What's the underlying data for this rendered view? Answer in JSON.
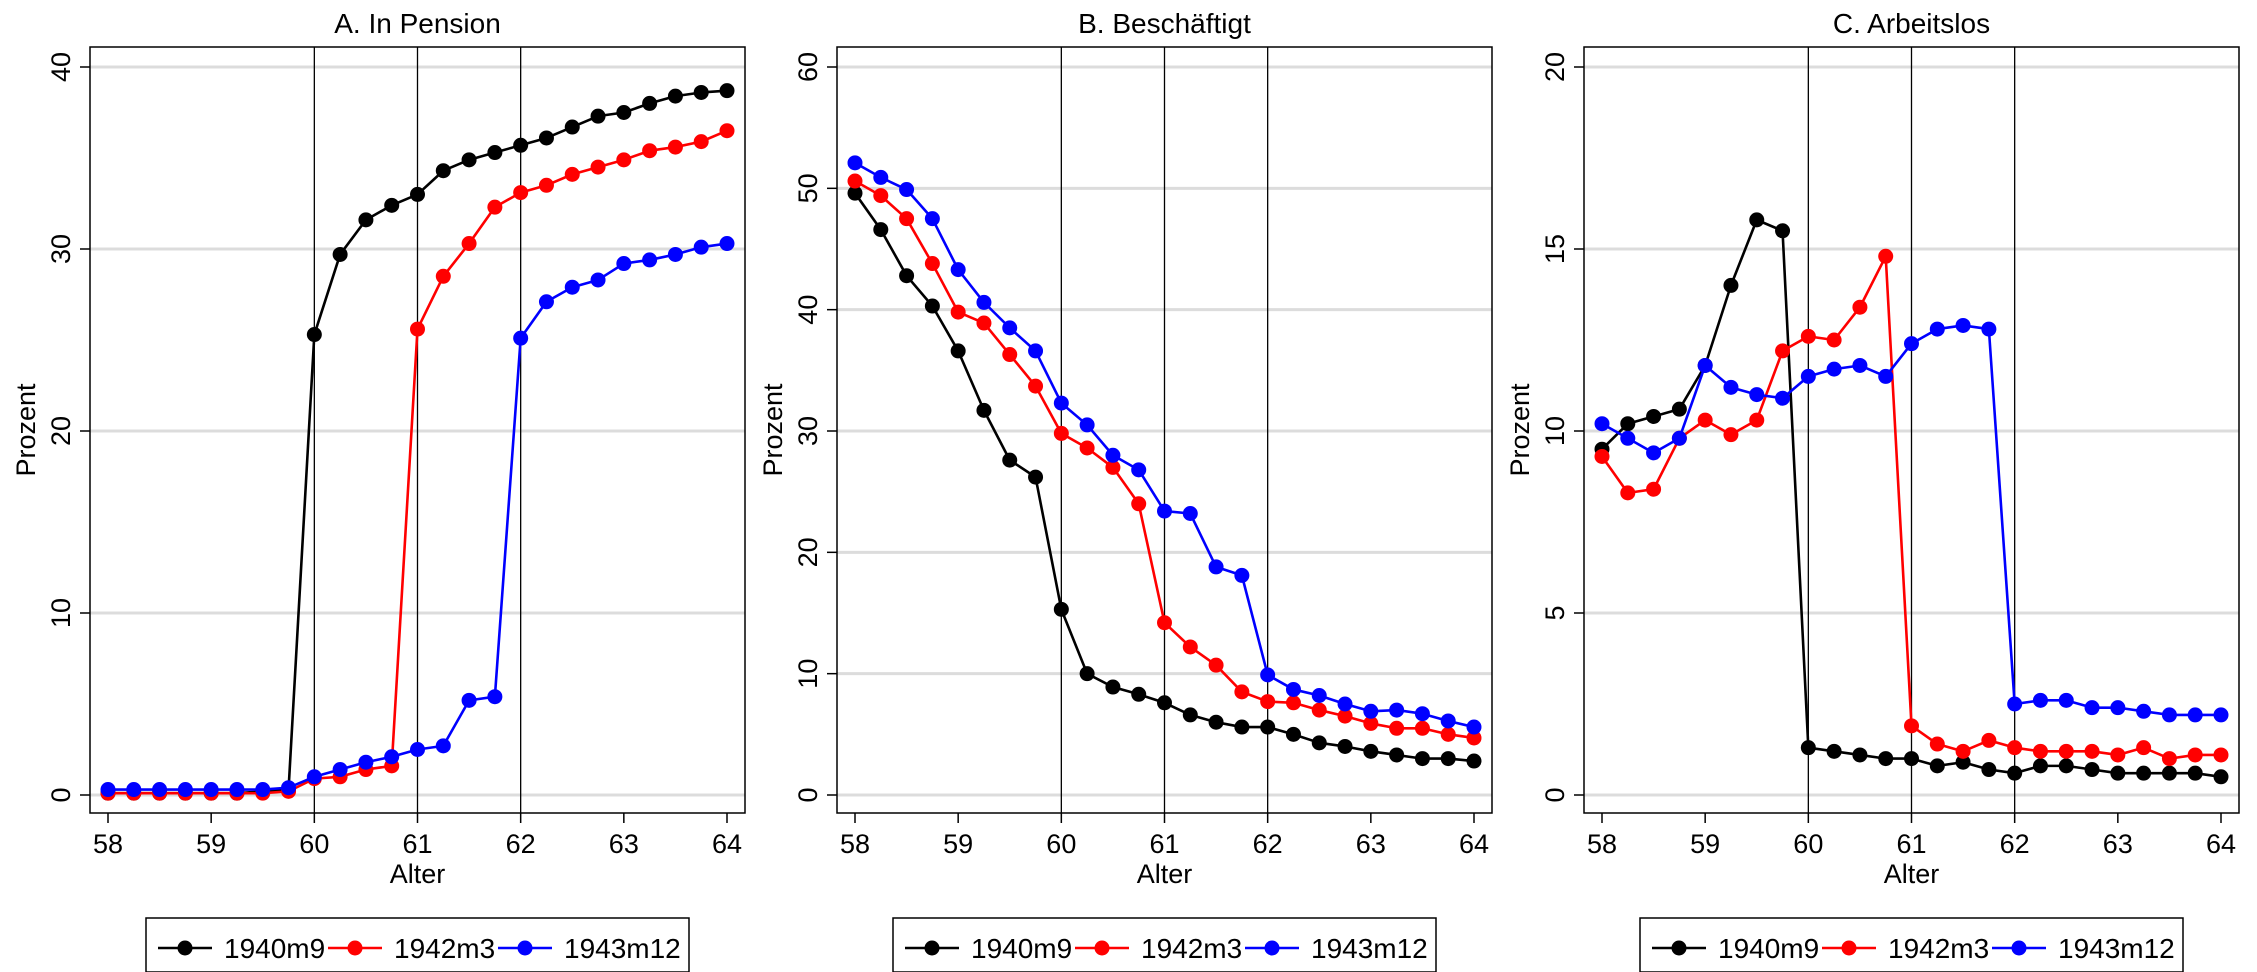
{
  "chart_data": [
    {
      "type": "line",
      "title": "A. In Pension",
      "xlabel": "Alter",
      "ylabel": "Prozent",
      "xlim": [
        58,
        64
      ],
      "ylim": [
        0,
        40
      ],
      "xticks": [
        58,
        59,
        60,
        61,
        62,
        63,
        64
      ],
      "yticks": [
        0,
        10,
        20,
        30,
        40
      ],
      "vlines": [
        60,
        61,
        62
      ],
      "grid": true,
      "legend_position": "bottom",
      "x": [
        58,
        58.25,
        58.5,
        58.75,
        59,
        59.25,
        59.5,
        59.75,
        60,
        60.25,
        60.5,
        60.75,
        61,
        61.25,
        61.5,
        61.75,
        62,
        62.25,
        62.5,
        62.75,
        63,
        63.25,
        63.5,
        63.75,
        64
      ],
      "series": [
        {
          "name": "1940m9",
          "color": "#000000",
          "values": [
            0.1,
            0.1,
            0.1,
            0.1,
            0.1,
            0.1,
            0.2,
            0.3,
            25.3,
            29.7,
            31.6,
            32.4,
            33.0,
            34.3,
            34.9,
            35.3,
            35.7,
            36.1,
            36.7,
            37.3,
            37.5,
            38.0,
            38.4,
            38.6,
            38.7
          ]
        },
        {
          "name": "1942m3",
          "color": "#ff0000",
          "values": [
            0.1,
            0.1,
            0.1,
            0.1,
            0.1,
            0.1,
            0.1,
            0.2,
            0.9,
            1.0,
            1.4,
            1.6,
            25.6,
            28.5,
            30.3,
            32.3,
            33.1,
            33.5,
            34.1,
            34.5,
            34.9,
            35.4,
            35.6,
            35.9,
            36.5
          ]
        },
        {
          "name": "1943m12",
          "color": "#0000ff",
          "values": [
            0.3,
            0.3,
            0.3,
            0.3,
            0.3,
            0.3,
            0.3,
            0.4,
            1.0,
            1.4,
            1.8,
            2.1,
            2.5,
            2.7,
            5.2,
            5.4,
            25.1,
            27.1,
            27.9,
            28.3,
            29.2,
            29.4,
            29.7,
            30.1,
            30.3
          ]
        }
      ]
    },
    {
      "type": "line",
      "title": "B. Beschäftigt",
      "xlabel": "Alter",
      "ylabel": "Prozent",
      "xlim": [
        58,
        64
      ],
      "ylim": [
        0,
        60
      ],
      "xticks": [
        58,
        59,
        60,
        61,
        62,
        63,
        64
      ],
      "yticks": [
        0,
        10,
        20,
        30,
        40,
        50,
        60
      ],
      "vlines": [
        60,
        61,
        62
      ],
      "grid": true,
      "legend_position": "bottom",
      "x": [
        58,
        58.25,
        58.5,
        58.75,
        59,
        59.25,
        59.5,
        59.75,
        60,
        60.25,
        60.5,
        60.75,
        61,
        61.25,
        61.5,
        61.75,
        62,
        62.25,
        62.5,
        62.75,
        63,
        63.25,
        63.5,
        63.75,
        64
      ],
      "series": [
        {
          "name": "1940m9",
          "color": "#000000",
          "values": [
            49.6,
            46.6,
            42.8,
            40.3,
            36.6,
            31.7,
            27.6,
            26.2,
            15.3,
            10.0,
            8.9,
            8.3,
            7.6,
            6.6,
            6.0,
            5.6,
            5.6,
            5.0,
            4.3,
            4.0,
            3.6,
            3.3,
            3.0,
            3.0,
            2.8
          ]
        },
        {
          "name": "1942m3",
          "color": "#ff0000",
          "values": [
            50.6,
            49.4,
            47.5,
            43.8,
            39.8,
            38.9,
            36.3,
            33.7,
            29.8,
            28.6,
            27.0,
            24.0,
            14.2,
            12.2,
            10.7,
            8.5,
            7.7,
            7.6,
            7.0,
            6.5,
            5.9,
            5.5,
            5.5,
            5.0,
            4.7
          ]
        },
        {
          "name": "1943m12",
          "color": "#0000ff",
          "values": [
            52.1,
            50.9,
            49.9,
            47.5,
            43.3,
            40.6,
            38.5,
            36.6,
            32.3,
            30.5,
            28.0,
            26.8,
            23.4,
            23.2,
            18.8,
            18.1,
            9.9,
            8.7,
            8.2,
            7.5,
            6.9,
            7.0,
            6.7,
            6.1,
            5.6
          ]
        }
      ]
    },
    {
      "type": "line",
      "title": "C. Arbeitslos",
      "xlabel": "Alter",
      "ylabel": "Prozent",
      "xlim": [
        58,
        64
      ],
      "ylim": [
        0,
        20
      ],
      "xticks": [
        58,
        59,
        60,
        61,
        62,
        63,
        64
      ],
      "yticks": [
        0,
        5,
        10,
        15,
        20
      ],
      "vlines": [
        60,
        61,
        62
      ],
      "grid": true,
      "legend_position": "bottom",
      "x": [
        58,
        58.25,
        58.5,
        58.75,
        59,
        59.25,
        59.5,
        59.75,
        60,
        60.25,
        60.5,
        60.75,
        61,
        61.25,
        61.5,
        61.75,
        62,
        62.25,
        62.5,
        62.75,
        63,
        63.25,
        63.5,
        63.75,
        64
      ],
      "series": [
        {
          "name": "1940m9",
          "color": "#000000",
          "values": [
            9.5,
            10.2,
            10.4,
            10.6,
            11.8,
            14.0,
            15.8,
            15.5,
            1.3,
            1.2,
            1.1,
            1.0,
            1.0,
            0.8,
            0.9,
            0.7,
            0.6,
            0.8,
            0.8,
            0.7,
            0.6,
            0.6,
            0.6,
            0.6,
            0.5
          ]
        },
        {
          "name": "1942m3",
          "color": "#ff0000",
          "values": [
            9.3,
            8.3,
            8.4,
            9.8,
            10.3,
            9.9,
            10.3,
            12.2,
            12.6,
            12.5,
            13.4,
            14.8,
            1.9,
            1.4,
            1.2,
            1.5,
            1.3,
            1.2,
            1.2,
            1.2,
            1.1,
            1.3,
            1.0,
            1.1,
            1.1
          ]
        },
        {
          "name": "1943m12",
          "color": "#0000ff",
          "values": [
            10.2,
            9.8,
            9.4,
            9.8,
            11.8,
            11.2,
            11.0,
            10.9,
            11.5,
            11.7,
            11.8,
            11.5,
            12.4,
            12.8,
            12.9,
            12.8,
            2.5,
            2.6,
            2.6,
            2.4,
            2.4,
            2.3,
            2.2,
            2.2,
            2.2
          ]
        }
      ]
    }
  ]
}
